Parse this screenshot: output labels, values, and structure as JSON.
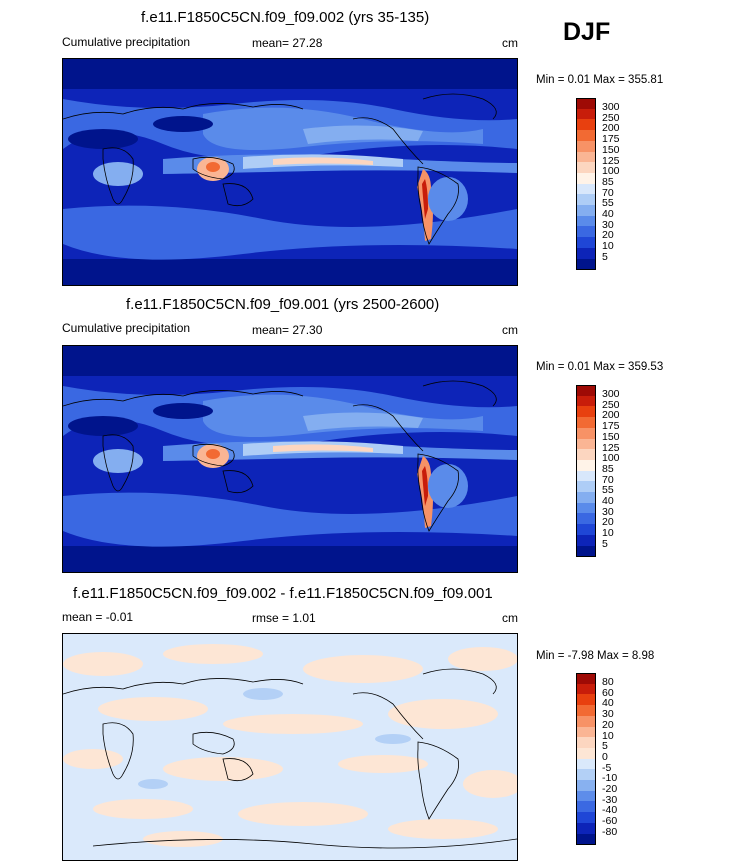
{
  "season": "DJF",
  "panels": [
    {
      "title": "f.e11.F1850C5CN.f09_f09.002 (yrs 35-135)",
      "left_label": "Cumulative precipitation",
      "stat_label": "mean=  27.28",
      "units": "cm",
      "minmax": "Min =   0.01 Max = 355.81",
      "levels": [
        "300",
        "250",
        "200",
        "175",
        "150",
        "125",
        "100",
        "85",
        "70",
        "55",
        "40",
        "30",
        "20",
        "10",
        "5"
      ],
      "colors": [
        "#9e0a05",
        "#c81d0a",
        "#e8400f",
        "#f26a33",
        "#f79266",
        "#fab594",
        "#fcd6c0",
        "#fff3e8",
        "#d8e7fb",
        "#aecdf6",
        "#84aef0",
        "#5a8bea",
        "#3a68e2",
        "#1f46d6",
        "#0d24b8",
        "#00148c"
      ],
      "chart_data": {
        "type": "heatmap",
        "title": "f.e11.F1850C5CN.f09_f09.002 (yrs 35-135)",
        "field": "Cumulative precipitation",
        "units": "cm",
        "mean": 27.28,
        "min": 0.01,
        "max": 355.81,
        "contour_levels": [
          5,
          10,
          20,
          30,
          40,
          55,
          70,
          85,
          100,
          125,
          150,
          175,
          200,
          250,
          300
        ]
      }
    },
    {
      "title": "f.e11.F1850C5CN.f09_f09.001 (yrs 2500-2600)",
      "left_label": "Cumulative precipitation",
      "stat_label": "mean=  27.30",
      "units": "cm",
      "minmax": "Min =   0.01 Max = 359.53",
      "levels": [
        "300",
        "250",
        "200",
        "175",
        "150",
        "125",
        "100",
        "85",
        "70",
        "55",
        "40",
        "30",
        "20",
        "10",
        "5"
      ],
      "colors": [
        "#9e0a05",
        "#c81d0a",
        "#e8400f",
        "#f26a33",
        "#f79266",
        "#fab594",
        "#fcd6c0",
        "#fff3e8",
        "#d8e7fb",
        "#aecdf6",
        "#84aef0",
        "#5a8bea",
        "#3a68e2",
        "#1f46d6",
        "#0d24b8",
        "#00148c"
      ],
      "chart_data": {
        "type": "heatmap",
        "title": "f.e11.F1850C5CN.f09_f09.001 (yrs 2500-2600)",
        "field": "Cumulative precipitation",
        "units": "cm",
        "mean": 27.3,
        "min": 0.01,
        "max": 359.53,
        "contour_levels": [
          5,
          10,
          20,
          30,
          40,
          55,
          70,
          85,
          100,
          125,
          150,
          175,
          200,
          250,
          300
        ]
      }
    },
    {
      "title": "f.e11.F1850C5CN.f09_f09.002 - f.e11.F1850C5CN.f09_f09.001",
      "left_label": "mean =  -0.01",
      "stat_label": "rmse =   1.01",
      "units": "cm",
      "minmax": "Min =  -7.98 Max =   8.98",
      "levels": [
        "80",
        "60",
        "40",
        "30",
        "20",
        "10",
        "5",
        "0",
        "-5",
        "-10",
        "-20",
        "-30",
        "-40",
        "-60",
        "-80"
      ],
      "colors": [
        "#9e0a05",
        "#c81d0a",
        "#e8400f",
        "#f26a33",
        "#f79266",
        "#fab594",
        "#fcd6c0",
        "#fde6d5",
        "#dae9fb",
        "#b3d0f6",
        "#88b1f0",
        "#5e8dea",
        "#3b69e2",
        "#1f46d6",
        "#0d24b8",
        "#00148c"
      ],
      "chart_data": {
        "type": "heatmap",
        "title": "f.e11.F1850C5CN.f09_f09.002 - f.e11.F1850C5CN.f09_f09.001",
        "units": "cm",
        "mean": -0.01,
        "rmse": 1.01,
        "min": -7.98,
        "max": 8.98,
        "contour_levels": [
          -80,
          -60,
          -40,
          -30,
          -20,
          -10,
          -5,
          0,
          5,
          10,
          20,
          30,
          40,
          60,
          80
        ]
      }
    }
  ]
}
